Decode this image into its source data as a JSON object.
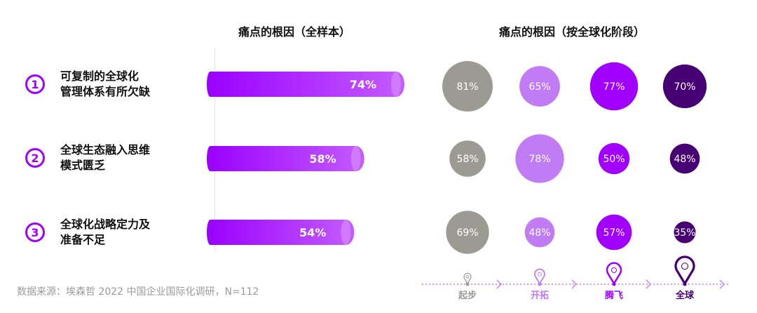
{
  "chart_data": [
    {
      "type": "bar",
      "title": "痛点的根因（全样本）",
      "categories": [
        "可复制的全球化管理体系有所欠缺",
        "全球生态融入思维模式匮乏",
        "全球化战略定力及准备不足"
      ],
      "values": [
        74,
        58,
        54
      ],
      "value_labels": [
        "74%",
        "58%",
        "54%"
      ],
      "xlim": [
        0,
        100
      ]
    },
    {
      "type": "bubble",
      "title": "痛点的根因（按全球化阶段）",
      "stages": [
        "起步",
        "开拓",
        "腾飞",
        "全球"
      ],
      "stage_colors": [
        "#9b9b94",
        "#c07bf5",
        "#a100ff",
        "#460073"
      ],
      "series": [
        {
          "name": "起步",
          "values": [
            81,
            58,
            69
          ],
          "labels": [
            "81%",
            "58%",
            "69%"
          ]
        },
        {
          "name": "开拓",
          "values": [
            65,
            78,
            48
          ],
          "labels": [
            "65%",
            "78%",
            "48%"
          ]
        },
        {
          "name": "腾飞",
          "values": [
            77,
            50,
            57
          ],
          "labels": [
            "77%",
            "50%",
            "57%"
          ]
        },
        {
          "name": "全球",
          "values": [
            70,
            48,
            35
          ],
          "labels": [
            "70%",
            "48%",
            "35%"
          ]
        }
      ]
    }
  ],
  "causes": [
    {
      "number": "1",
      "line1": "可复制的全球化",
      "line2": "管理体系有所欠缺"
    },
    {
      "number": "2",
      "line1": "全球生态融入思维",
      "line2": "模式匮乏"
    },
    {
      "number": "3",
      "line1": "全球化战略定力及",
      "line2": "准备不足"
    }
  ],
  "source": "数据来源：埃森哲 2022 中国企业国际化调研，N=112",
  "colors": {
    "accent": "#a100ff",
    "bar_light": "#d07aff",
    "timeline": "#c07bf5"
  }
}
